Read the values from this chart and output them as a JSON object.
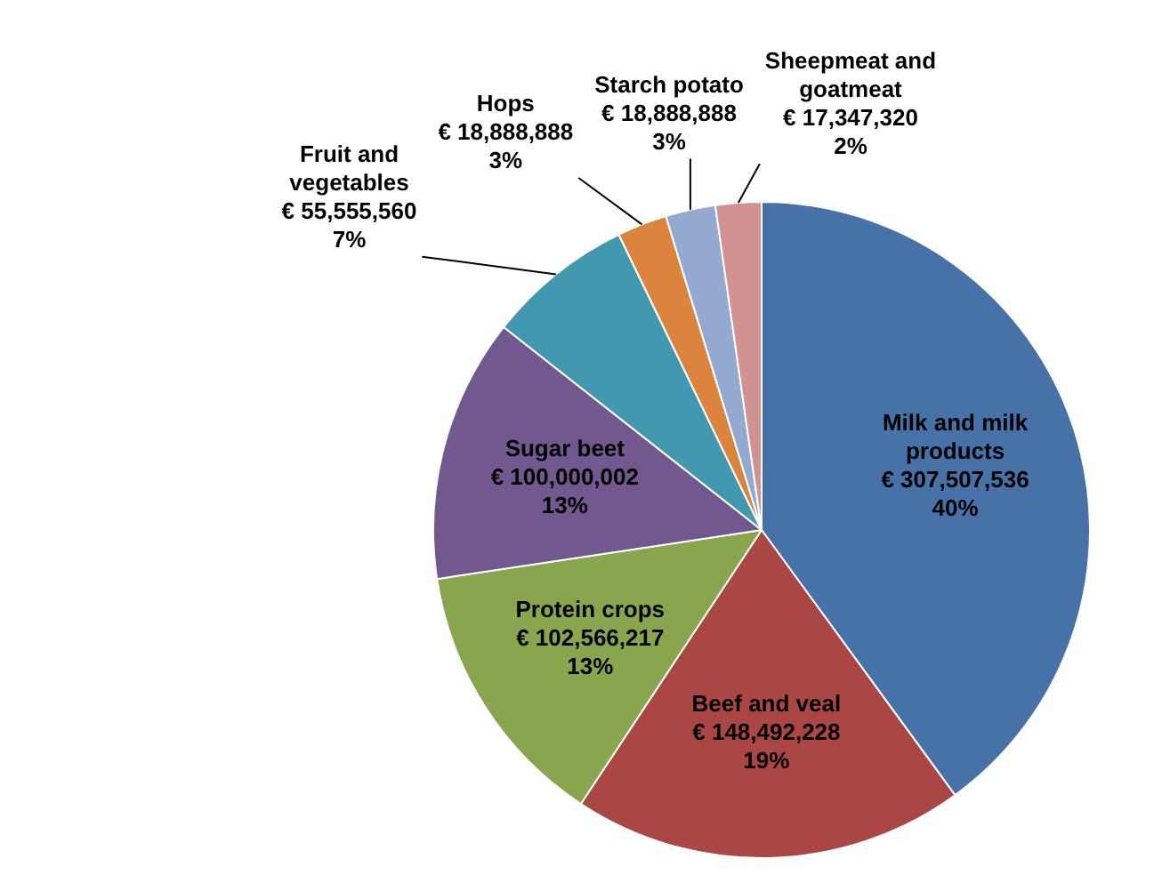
{
  "chart_data": {
    "type": "pie",
    "categories": [
      "Milk and milk products",
      "Beef and veal",
      "Protein crops",
      "Sugar beet",
      "Fruit and vegetables",
      "Hops",
      "Starch potato",
      "Sheepmeat and goatmeat"
    ],
    "values": [
      307507536,
      148492228,
      102566217,
      100000002,
      55555560,
      18888888,
      18888888,
      17347320
    ],
    "colors": [
      "#4672a8",
      "#aa4644",
      "#89a54e",
      "#71588f",
      "#4298af",
      "#db843d",
      "#93a9cf",
      "#d19392"
    ],
    "value_labels": [
      "€ 307,507,536\n40%",
      "€ 148,492,228\n19%",
      "€ 102,566,217\n13%",
      "€ 100,000,002\n13%",
      "€ 55,555,560\n7%",
      "€ 18,888,888\n3%",
      "€ 18,888,888\n3%",
      "€ 17,347,320\n2%"
    ],
    "legend": false
  }
}
